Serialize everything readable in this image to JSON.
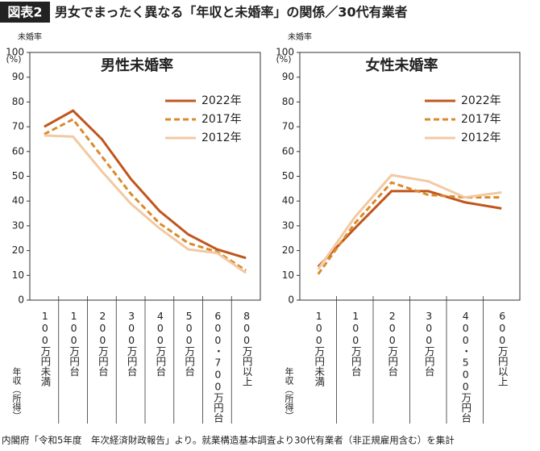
{
  "header": {
    "badge": "図表2",
    "title": "男女でまったく異なる「年収と未婚率」の関係／30代有業者"
  },
  "source": "内閣府「令和5年度　年次経済財政報告」より。就業構造基本調査より30代有業者（非正規雇用含む）を集計",
  "chart_data": [
    {
      "type": "line",
      "title": "男性未婚率",
      "y_label": "未婚率",
      "y_unit": "(%)",
      "x_label": "年収（所得）",
      "categories": [
        "100万円未満",
        "100万円台",
        "200万円台",
        "300万円台",
        "400万円台",
        "500万円台",
        "600・700万円台",
        "800万円以上"
      ],
      "series": [
        {
          "name": "2022年",
          "color": "#c0561c",
          "dashed": false,
          "values": [
            70,
            76.5,
            65,
            49,
            36,
            26.5,
            20.5,
            17
          ]
        },
        {
          "name": "2017年",
          "color": "#d98b2b",
          "dashed": true,
          "values": [
            67,
            73,
            58,
            43,
            31,
            23,
            19.5,
            12
          ]
        },
        {
          "name": "2012年",
          "color": "#f2c9a2",
          "dashed": false,
          "values": [
            66.5,
            66,
            52,
            39,
            29,
            20.5,
            19,
            11
          ]
        }
      ],
      "ylim": [
        0,
        100
      ],
      "yticks": [
        0,
        10,
        20,
        30,
        40,
        50,
        60,
        70,
        80,
        90,
        100
      ]
    },
    {
      "type": "line",
      "title": "女性未婚率",
      "y_label": "未婚率",
      "y_unit": "(%)",
      "x_label": "年収（所得）",
      "categories": [
        "100万円未満",
        "100万円台",
        "200万円台",
        "300万円台",
        "400・500万円台",
        "600万円以上"
      ],
      "series": [
        {
          "name": "2022年",
          "color": "#c0561c",
          "dashed": false,
          "values": [
            13.5,
            29,
            44,
            44,
            39.5,
            37
          ]
        },
        {
          "name": "2017年",
          "color": "#d98b2b",
          "dashed": true,
          "values": [
            10.5,
            31,
            47.5,
            42.5,
            41.5,
            41.5
          ]
        },
        {
          "name": "2012年",
          "color": "#f2c9a2",
          "dashed": false,
          "values": [
            12.5,
            33.5,
            50.5,
            48,
            41.5,
            43.5
          ]
        }
      ],
      "ylim": [
        0,
        100
      ],
      "yticks": [
        0,
        10,
        20,
        30,
        40,
        50,
        60,
        70,
        80,
        90,
        100
      ]
    }
  ]
}
